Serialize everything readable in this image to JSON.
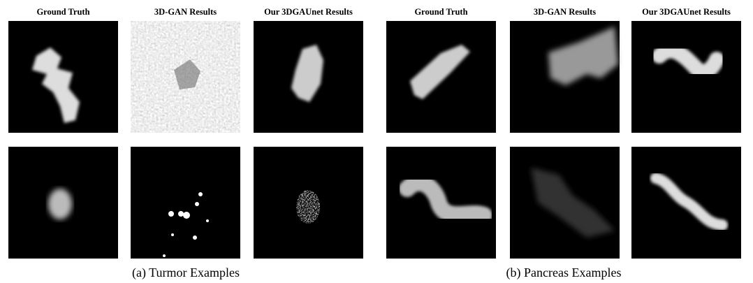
{
  "panels": [
    {
      "caption": "(a) Turmor Examples",
      "columns": [
        "Ground Truth",
        "3D-GAN Results",
        "Our 3DGAUnet Results"
      ]
    },
    {
      "caption": "(b) Pancreas Examples",
      "columns": [
        "Ground Truth",
        "3D-GAN Results",
        "Our 3DGAUnet Results"
      ]
    }
  ]
}
